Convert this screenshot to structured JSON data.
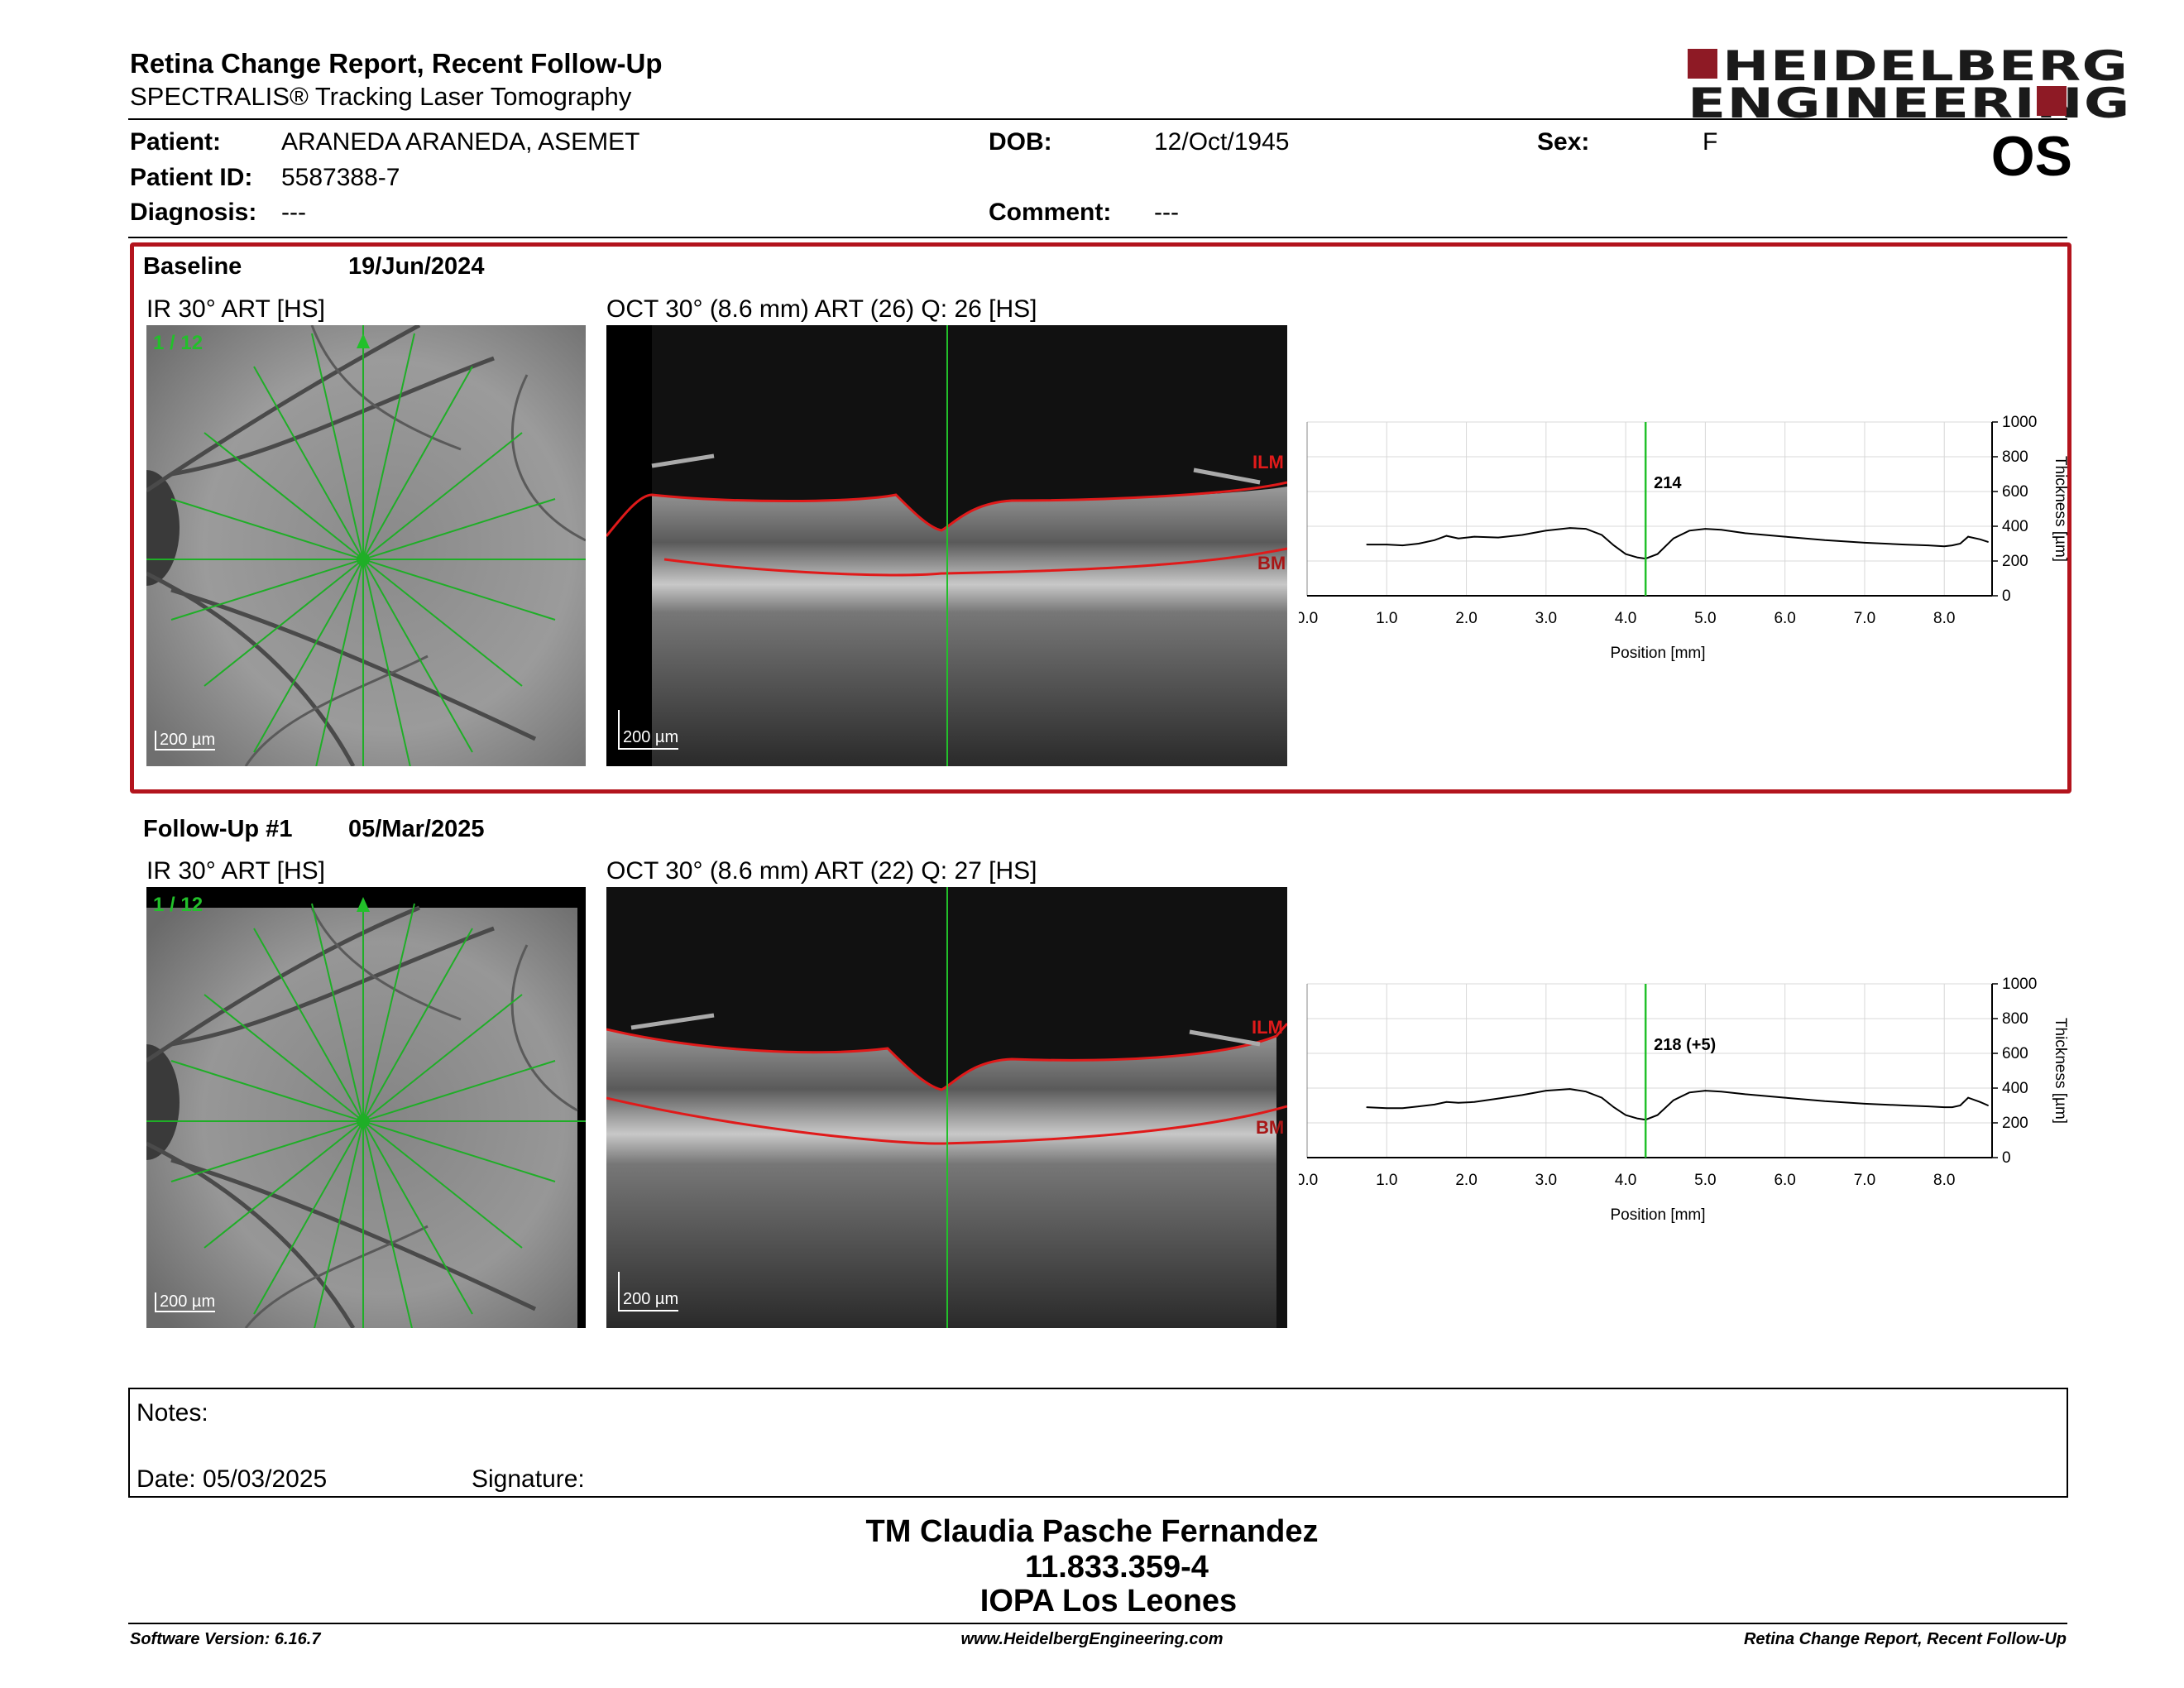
{
  "header": {
    "title": "Retina Change Report, Recent Follow-Up",
    "subtitle": "SPECTRALIS® Tracking Laser Tomography",
    "logo_line1": "HEIDELBERG",
    "logo_line2": "ENGINEERING",
    "eye": "OS"
  },
  "patient": {
    "patient_label": "Patient:",
    "patient_value": "ARANEDA ARANEDA, ASEMET",
    "dob_label": "DOB:",
    "dob_value": "12/Oct/1945",
    "sex_label": "Sex:",
    "sex_value": "F",
    "id_label": "Patient ID:",
    "id_value": "5587388-7",
    "diagnosis_label": "Diagnosis:",
    "diagnosis_value": "---",
    "comment_label": "Comment:",
    "comment_value": "---"
  },
  "baseline": {
    "label": "Baseline",
    "date": "19/Jun/2024",
    "ir_label": "IR 30° ART [HS]",
    "oct_label": "OCT 30° (8.6 mm) ART (26) Q: 26 [HS]",
    "scan_index": "1 / 12",
    "scale_ir": "200 µm",
    "scale_oct": "200 µm",
    "ilm": "ILM",
    "bm": "BM",
    "thickness_value": "214"
  },
  "followup": {
    "label": "Follow-Up #1",
    "date": "05/Mar/2025",
    "ir_label": "IR 30° ART [HS]",
    "oct_label": "OCT 30° (8.6 mm) ART (22) Q: 27 [HS]",
    "scan_index": "1 / 12",
    "scale_ir": "200 µm",
    "scale_oct": "200 µm",
    "ilm": "ILM",
    "bm": "BM",
    "thickness_value": "218 (+5)"
  },
  "chart_data": [
    {
      "type": "line",
      "xlabel": "Position [mm]",
      "ylabel": "Thickness [µm]",
      "xlim": [
        0,
        8.6
      ],
      "ylim": [
        0,
        1000
      ],
      "xticks": [
        "0.0",
        "1.0",
        "2.0",
        "3.0",
        "4.0",
        "5.0",
        "6.0",
        "7.0",
        "8.0"
      ],
      "yticks": [
        "0",
        "200",
        "400",
        "600",
        "800",
        "1000"
      ],
      "cursor_x": 4.25,
      "annotation": "214",
      "x": [
        0.75,
        1.0,
        1.2,
        1.4,
        1.6,
        1.75,
        1.9,
        2.1,
        2.4,
        2.7,
        3.0,
        3.3,
        3.5,
        3.7,
        3.85,
        4.0,
        4.15,
        4.25,
        4.4,
        4.6,
        4.8,
        5.0,
        5.2,
        5.5,
        6.0,
        6.5,
        7.0,
        7.5,
        7.8,
        8.0,
        8.1,
        8.2,
        8.3,
        8.45,
        8.55
      ],
      "values": [
        295,
        295,
        290,
        300,
        320,
        345,
        330,
        340,
        335,
        350,
        375,
        390,
        385,
        350,
        290,
        240,
        220,
        214,
        240,
        330,
        375,
        385,
        380,
        360,
        340,
        320,
        305,
        295,
        290,
        285,
        290,
        300,
        340,
        325,
        310
      ]
    },
    {
      "type": "line",
      "xlabel": "Position [mm]",
      "ylabel": "Thickness [µm]",
      "xlim": [
        0,
        8.6
      ],
      "ylim": [
        0,
        1000
      ],
      "xticks": [
        "0.0",
        "1.0",
        "2.0",
        "3.0",
        "4.0",
        "5.0",
        "6.0",
        "7.0",
        "8.0"
      ],
      "yticks": [
        "0",
        "200",
        "400",
        "600",
        "800",
        "1000"
      ],
      "cursor_x": 4.25,
      "annotation": "218 (+5)",
      "x": [
        0.75,
        1.0,
        1.2,
        1.4,
        1.6,
        1.75,
        1.9,
        2.1,
        2.4,
        2.7,
        3.0,
        3.3,
        3.5,
        3.7,
        3.85,
        4.0,
        4.15,
        4.25,
        4.4,
        4.6,
        4.8,
        5.0,
        5.2,
        5.5,
        6.0,
        6.5,
        7.0,
        7.5,
        7.8,
        8.0,
        8.1,
        8.2,
        8.3,
        8.45,
        8.55
      ],
      "values": [
        290,
        285,
        285,
        295,
        305,
        320,
        315,
        320,
        340,
        360,
        385,
        395,
        380,
        345,
        290,
        245,
        225,
        218,
        245,
        330,
        375,
        385,
        380,
        365,
        345,
        325,
        310,
        300,
        295,
        290,
        290,
        300,
        345,
        320,
        300
      ]
    }
  ],
  "notes": {
    "notes_label": "Notes:",
    "date_label": "Date: 05/03/2025",
    "signature_label": "Signature:"
  },
  "signer": {
    "name": "TM Claudia Pasche Fernandez",
    "id": "11.833.359-4",
    "org": "IOPA Los Leones"
  },
  "footer": {
    "version": "Software Version: 6.16.7",
    "website": "www.HeidelbergEngineering.com",
    "report": "Retina Change Report, Recent Follow-Up"
  },
  "colors": {
    "accent_red": "#b3141d",
    "logo_red": "#8e1a25",
    "scan_green": "#22c02a",
    "ilm_red": "#e01a1a"
  }
}
